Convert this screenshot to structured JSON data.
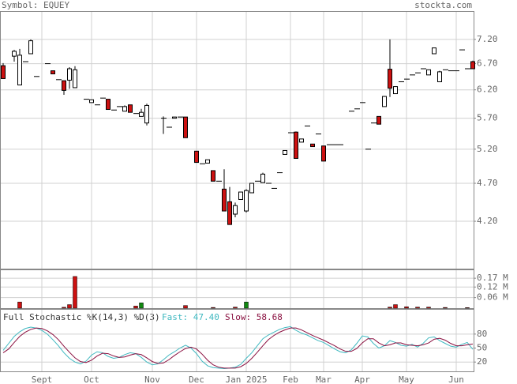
{
  "chart_data": [
    {
      "type": "candlestick",
      "title": "Symbol: EQUEY",
      "source": "stockta.com",
      "categories": [
        null,
        null,
        null,
        null,
        null,
        null,
        null,
        "Sept",
        null,
        null,
        null,
        null,
        null,
        null,
        null,
        null,
        "Oct",
        null,
        null,
        null,
        null,
        null,
        null,
        null,
        null,
        null,
        null,
        "Nov",
        null,
        null,
        null,
        null,
        null,
        null,
        null,
        "Dec",
        null,
        null,
        null,
        null,
        null,
        null,
        null,
        null,
        "Jan 2025",
        null,
        null,
        null,
        null,
        null,
        null,
        null,
        "Feb",
        null,
        null,
        null,
        null,
        null,
        "Mar",
        null,
        null,
        null,
        null,
        null,
        null,
        "Apr",
        null,
        null,
        null,
        null,
        null,
        null,
        null,
        "May",
        null,
        null,
        null,
        null,
        null,
        null,
        null,
        null,
        "Jun",
        null,
        null,
        null
      ],
      "open": [
        6.66,
        null,
        6.85,
        6.29,
        6.74,
        6.9,
        6.45,
        null,
        6.7,
        6.56,
        6.39,
        6.37,
        6.38,
        6.24,
        null,
        6.03,
        5.97,
        5.93,
        6.05,
        6.03,
        5.84,
        5.9,
        5.82,
        5.93,
        5.78,
        5.73,
        5.62,
        null,
        null,
        5.7,
        5.55,
        5.7,
        5.72,
        5.72,
        null,
        5.17,
        4.98,
        4.99,
        4.88,
        4.73,
        4.62,
        4.45,
        4.29,
        4.48,
        4.33,
        4.57,
        4.73,
        4.71,
        4.7,
        4.63,
        4.85,
        5.12,
        5.46,
        5.47,
        5.31,
        5.57,
        5.28,
        5.44,
        5.25,
        5.27,
        5.27,
        5.27,
        null,
        5.82,
        5.86,
        5.97,
        5.2,
        5.62,
        5.73,
        5.9,
        6.59,
        6.13,
        6.35,
        6.4,
        6.48,
        6.52,
        6.6,
        6.48,
        6.9,
        6.35,
        6.58,
        6.56,
        6.56,
        6.98,
        6.6,
        6.74
      ],
      "high": [
        6.71,
        null,
        6.98,
        7.0,
        6.74,
        7.2,
        6.45,
        null,
        6.7,
        6.56,
        6.39,
        6.37,
        6.63,
        6.65,
        null,
        6.03,
        6.02,
        5.93,
        6.05,
        6.03,
        5.84,
        5.9,
        5.92,
        5.93,
        5.78,
        5.86,
        5.95,
        null,
        null,
        5.73,
        5.55,
        5.72,
        5.72,
        5.72,
        null,
        5.17,
        4.98,
        5.04,
        4.88,
        4.73,
        4.9,
        4.65,
        4.44,
        4.58,
        4.62,
        4.7,
        4.73,
        4.85,
        4.7,
        4.63,
        4.85,
        5.18,
        5.46,
        5.48,
        5.36,
        5.57,
        5.28,
        5.44,
        5.25,
        5.27,
        5.27,
        5.27,
        null,
        5.82,
        5.86,
        5.97,
        5.2,
        5.62,
        5.73,
        6.09,
        7.2,
        6.26,
        6.35,
        6.4,
        6.48,
        6.52,
        6.6,
        6.58,
        7.02,
        6.56,
        6.58,
        6.56,
        6.56,
        6.98,
        6.6,
        6.76
      ],
      "low": [
        6.41,
        null,
        6.74,
        6.29,
        6.74,
        6.9,
        6.45,
        null,
        6.7,
        6.5,
        6.39,
        6.11,
        6.22,
        6.24,
        null,
        6.03,
        5.97,
        5.93,
        6.05,
        5.85,
        5.84,
        5.9,
        5.82,
        5.8,
        5.78,
        5.73,
        5.58,
        null,
        null,
        5.44,
        5.55,
        5.7,
        5.72,
        5.38,
        null,
        5.0,
        4.98,
        4.99,
        4.73,
        4.73,
        4.33,
        4.16,
        4.25,
        4.48,
        4.31,
        4.57,
        4.73,
        4.71,
        4.7,
        4.63,
        4.85,
        5.12,
        5.46,
        5.06,
        5.31,
        5.57,
        5.24,
        5.44,
        5.02,
        5.27,
        5.27,
        5.27,
        null,
        5.82,
        5.86,
        5.97,
        5.2,
        5.62,
        5.6,
        5.9,
        6.07,
        6.13,
        6.35,
        6.4,
        6.48,
        6.52,
        6.6,
        6.48,
        6.9,
        6.35,
        6.58,
        6.56,
        6.56,
        6.98,
        6.6,
        6.6
      ],
      "close": [
        6.41,
        null,
        6.95,
        6.87,
        6.74,
        7.17,
        6.45,
        null,
        6.7,
        6.5,
        6.39,
        6.19,
        6.6,
        6.58,
        null,
        6.03,
        6.02,
        5.93,
        6.05,
        5.85,
        5.84,
        5.9,
        5.9,
        5.8,
        5.78,
        5.8,
        5.92,
        null,
        null,
        5.7,
        5.55,
        5.72,
        5.72,
        5.38,
        null,
        5.0,
        4.98,
        5.04,
        4.73,
        4.73,
        4.33,
        4.16,
        4.4,
        4.58,
        4.6,
        4.7,
        4.73,
        4.83,
        4.7,
        4.63,
        4.85,
        5.18,
        5.46,
        5.06,
        5.36,
        5.57,
        5.24,
        5.44,
        5.02,
        5.27,
        5.27,
        5.27,
        null,
        5.82,
        5.86,
        5.97,
        5.2,
        5.62,
        5.6,
        6.08,
        6.23,
        6.26,
        6.35,
        6.4,
        6.48,
        6.52,
        6.6,
        6.58,
        7.02,
        6.54,
        6.58,
        6.56,
        6.56,
        6.98,
        6.6,
        6.6
      ],
      "up_color": "#ffffff",
      "down_color": "#cc1111",
      "log_scale": true,
      "grid": true,
      "ylim": [
        3.65,
        7.83
      ],
      "yticks": [
        {
          "value": 7.2,
          "label": "7.20"
        },
        {
          "value": 6.7,
          "label": "6.70"
        },
        {
          "value": 6.2,
          "label": "6.20"
        },
        {
          "value": 5.7,
          "label": "5.70"
        },
        {
          "value": 5.2,
          "label": "5.20"
        },
        {
          "value": 4.7,
          "label": "4.70"
        },
        {
          "value": 4.2,
          "label": "4.20"
        }
      ]
    },
    {
      "type": "bar",
      "values": [
        null,
        null,
        null,
        0.035,
        null,
        null,
        null,
        null,
        null,
        null,
        null,
        0.005,
        0.02,
        0.18,
        null,
        null,
        null,
        null,
        null,
        null,
        null,
        null,
        null,
        null,
        0.012,
        0.03,
        null,
        null,
        null,
        null,
        null,
        null,
        null,
        0.015,
        null,
        null,
        null,
        null,
        0.004,
        null,
        null,
        null,
        0.006,
        null,
        0.035,
        null,
        null,
        null,
        null,
        null,
        null,
        null,
        null,
        null,
        null,
        null,
        null,
        null,
        null,
        null,
        null,
        null,
        null,
        null,
        null,
        null,
        null,
        null,
        null,
        null,
        0.006,
        0.02,
        null,
        0.008,
        null,
        0.006,
        null,
        0.006,
        null,
        null,
        0.004,
        null,
        null,
        null,
        0.003,
        null
      ],
      "colors": [
        null,
        null,
        null,
        "#cc1111",
        null,
        null,
        null,
        null,
        null,
        null,
        null,
        "#cc1111",
        "#cc1111",
        "#cc1111",
        null,
        null,
        null,
        null,
        null,
        null,
        null,
        null,
        null,
        null,
        "#cc1111",
        "#118811",
        null,
        null,
        null,
        null,
        null,
        null,
        null,
        "#cc1111",
        null,
        null,
        null,
        null,
        "#cc1111",
        null,
        null,
        null,
        "#cc1111",
        null,
        "#118811",
        null,
        null,
        null,
        null,
        null,
        null,
        null,
        null,
        null,
        null,
        null,
        null,
        null,
        null,
        null,
        null,
        null,
        null,
        null,
        null,
        null,
        null,
        null,
        null,
        null,
        "#cc1111",
        "#cc1111",
        null,
        "#cc1111",
        null,
        "#cc1111",
        null,
        "#cc1111",
        null,
        null,
        "#cc1111",
        null,
        null,
        null,
        "#cc1111",
        null
      ],
      "ylim": [
        0,
        0.22
      ],
      "yticks": [
        {
          "value": 0.17,
          "label": "0.17 M"
        },
        {
          "value": 0.12,
          "label": "0.12 M"
        },
        {
          "value": 0.06,
          "label": "0.06 M"
        }
      ]
    },
    {
      "type": "line",
      "title": "Full Stochastic %K(14,3) %D(3)",
      "series": [
        {
          "name": "Fast: 47.40",
          "color": "#3fb8c0",
          "values": [
            45,
            60,
            75,
            85,
            92,
            95,
            93,
            88,
            80,
            68,
            55,
            40,
            28,
            20,
            16,
            22,
            35,
            42,
            40,
            32,
            28,
            30,
            36,
            40,
            38,
            30,
            20,
            14,
            16,
            25,
            35,
            42,
            50,
            56,
            50,
            38,
            22,
            12,
            8,
            7,
            6,
            7,
            9,
            15,
            28,
            40,
            55,
            70,
            78,
            84,
            90,
            94,
            96,
            88,
            82,
            78,
            72,
            66,
            62,
            55,
            48,
            42,
            40,
            46,
            60,
            76,
            74,
            60,
            50,
            55,
            66,
            62,
            56,
            54,
            58,
            52,
            60,
            72,
            74,
            66,
            60,
            54,
            52,
            58,
            62,
            47.4
          ]
        },
        {
          "name": "Slow: 58.68",
          "color": "#8a1040",
          "values": [
            40,
            48,
            62,
            75,
            84,
            90,
            93,
            92,
            87,
            79,
            68,
            54,
            41,
            29,
            21,
            19,
            24,
            33,
            39,
            38,
            33,
            30,
            31,
            35,
            38,
            36,
            29,
            21,
            17,
            18,
            25,
            34,
            42,
            49,
            52,
            48,
            37,
            24,
            14,
            9,
            7,
            7,
            7,
            10,
            17,
            28,
            41,
            55,
            68,
            77,
            84,
            89,
            93,
            93,
            89,
            83,
            77,
            72,
            67,
            61,
            55,
            48,
            43,
            43,
            49,
            61,
            70,
            70,
            61,
            55,
            57,
            61,
            61,
            57,
            56,
            55,
            57,
            61,
            69,
            71,
            67,
            60,
            55,
            55,
            57,
            58.68
          ]
        }
      ],
      "ylim": [
        0,
        134
      ],
      "yticks": [
        80,
        50,
        20
      ]
    }
  ]
}
